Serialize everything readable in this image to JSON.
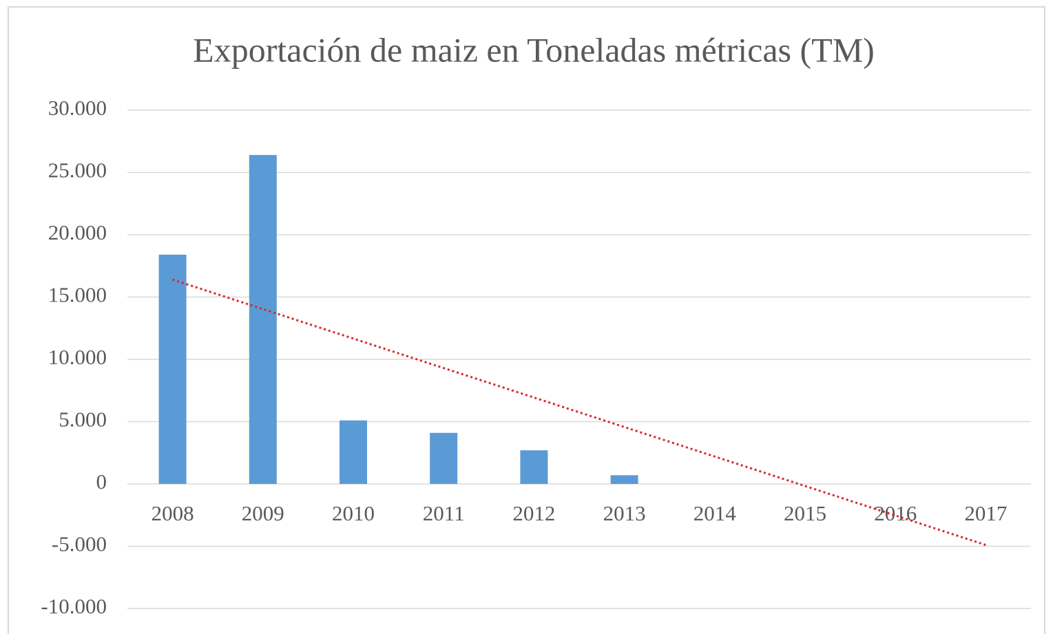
{
  "chart_data": {
    "type": "bar",
    "title": "Exportación de maiz en Toneladas métricas (TM)",
    "categories": [
      "2008",
      "2009",
      "2010",
      "2011",
      "2012",
      "2013",
      "2014",
      "2015",
      "2016",
      "2017"
    ],
    "values": [
      18400,
      26400,
      5100,
      4100,
      2700,
      700,
      0,
      0,
      0,
      0
    ],
    "color": "#5b9bd5",
    "trendline": {
      "start": 16400,
      "end": -4900,
      "color": "#d62728"
    },
    "ylim": [
      -10000,
      30000
    ],
    "yticks": [
      {
        "value": -10000,
        "label": "-10.000"
      },
      {
        "value": -5000,
        "label": "-5.000"
      },
      0,
      {
        "value": 5000,
        "label": "5.000"
      },
      {
        "value": 10000,
        "label": "10.000"
      },
      {
        "value": 15000,
        "label": "15.000"
      },
      {
        "value": 20000,
        "label": "20.000"
      },
      {
        "value": 25000,
        "label": "25.000"
      },
      {
        "value": 30000,
        "label": "30.000"
      }
    ],
    "grid": true
  }
}
